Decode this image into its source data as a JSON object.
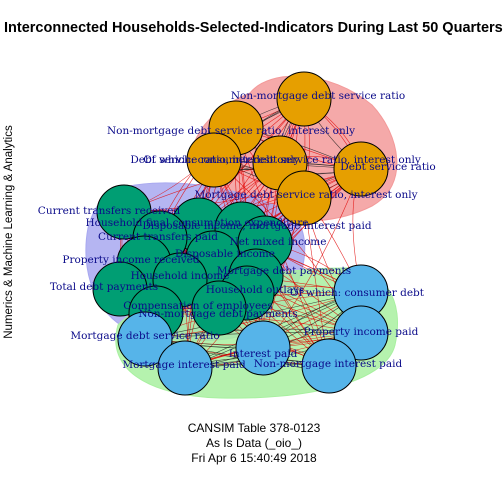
{
  "title": "Interconnected Households-Selected-Indicators During Last 50 Quarters",
  "y_axis_label": "Numerics & Machine Learning & Analytics",
  "footer": {
    "line1": "CANSIM Table 378-0123",
    "line2": "As Is Data (_oio_)",
    "line3": "Fri Apr  6 15:40:49 2018"
  },
  "colors": {
    "cluster_debt_ratio": "#f39a9a",
    "cluster_income": "#a8a8f0",
    "cluster_payments": "#a8f0a0",
    "node_debt_ratio": "#e69f00",
    "node_income": "#009e73",
    "node_payments": "#56b4e9",
    "edge": "#e00000",
    "edge_dark": "#1a1a1a",
    "label": "#0b0b8a"
  },
  "nodes": [
    {
      "id": "n1",
      "label": "Non-mortgage debt service ratio",
      "group": "debt_ratio"
    },
    {
      "id": "n2",
      "label": "Non-mortgage debt service ratio, interest only",
      "group": "debt_ratio"
    },
    {
      "id": "n3",
      "label": "Debt service ratio, interest only",
      "group": "debt_ratio"
    },
    {
      "id": "n4",
      "label": "Of which: consumer debt service ratio, interest only",
      "group": "debt_ratio"
    },
    {
      "id": "n5",
      "label": "Debt service ratio",
      "group": "debt_ratio"
    },
    {
      "id": "n6",
      "label": "Mortgage debt service ratio, interest only",
      "group": "debt_ratio"
    },
    {
      "id": "n7",
      "label": "Current transfers received",
      "group": "income"
    },
    {
      "id": "n8",
      "label": "Household final consumption expenditure",
      "group": "income"
    },
    {
      "id": "n9",
      "label": "Disposable income, mortgage interest paid",
      "group": "income"
    },
    {
      "id": "n10",
      "label": "Current transfers paid",
      "group": "income"
    },
    {
      "id": "n11",
      "label": "Net mixed income",
      "group": "income"
    },
    {
      "id": "n12",
      "label": "Property income received",
      "group": "income"
    },
    {
      "id": "n13",
      "label": "Disposable income",
      "group": "income"
    },
    {
      "id": "n14",
      "label": "Household income",
      "group": "income"
    },
    {
      "id": "n15",
      "label": "Mortgage debt payments",
      "group": "income"
    },
    {
      "id": "n16",
      "label": "Total debt payments",
      "group": "income"
    },
    {
      "id": "n17",
      "label": "Household outlays",
      "group": "income"
    },
    {
      "id": "n18",
      "label": "Compensation of employees",
      "group": "income"
    },
    {
      "id": "n19",
      "label": "Non-mortgage debt payments",
      "group": "income"
    },
    {
      "id": "n20",
      "label": "Of which: consumer debt",
      "group": "payments"
    },
    {
      "id": "n21",
      "label": "Mortgage debt service ratio",
      "group": "payments"
    },
    {
      "id": "n22",
      "label": "Property income paid",
      "group": "payments"
    },
    {
      "id": "n23",
      "label": "Mortgage interest paid",
      "group": "payments"
    },
    {
      "id": "n24",
      "label": "Interest paid",
      "group": "payments"
    },
    {
      "id": "n25",
      "label": "Non-mortgage interest paid",
      "group": "payments"
    }
  ]
}
